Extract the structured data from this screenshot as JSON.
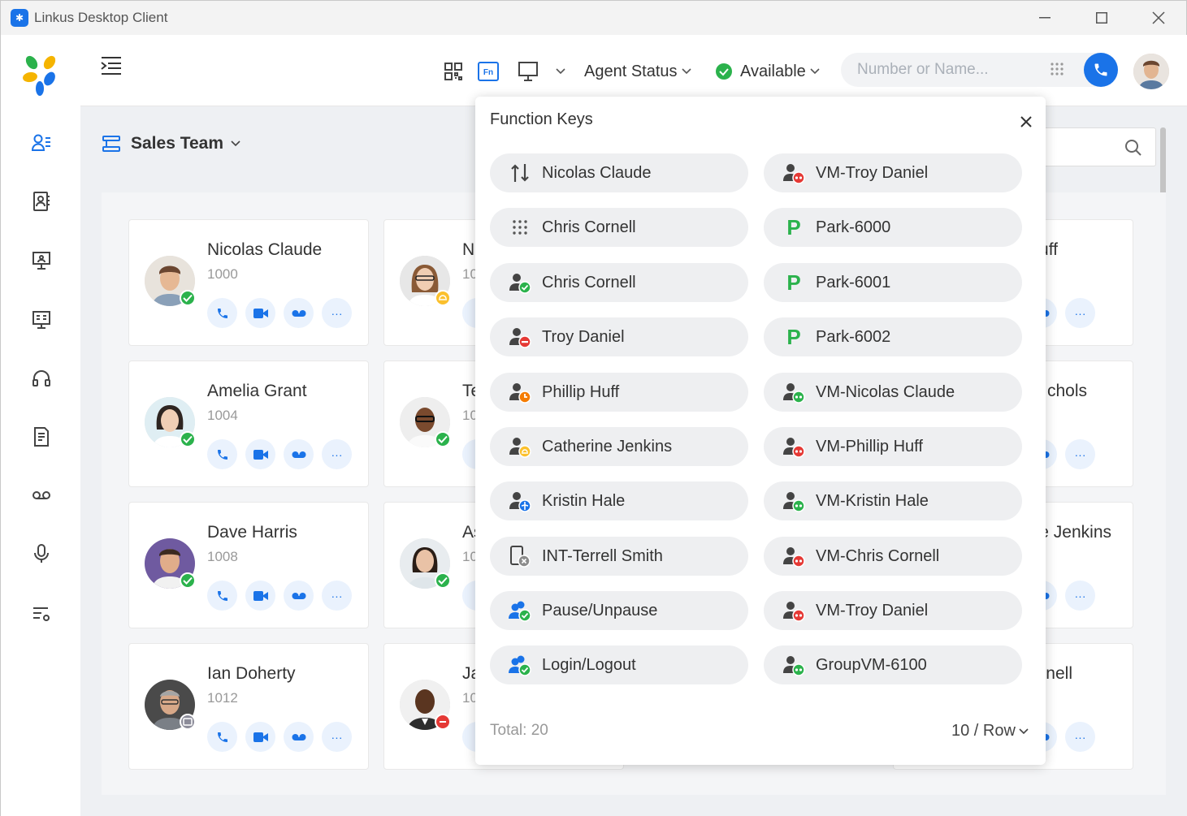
{
  "window": {
    "title": "Linkus Desktop Client"
  },
  "topbar": {
    "agent_status_label": "Agent Status",
    "presence_label": "Available",
    "search_placeholder": "Number or Name..."
  },
  "group": {
    "name": "Sales Team"
  },
  "contacts": [
    {
      "name": "Nicolas Claude",
      "ext": "1000",
      "status": "available"
    },
    {
      "name": "Amelia Grant",
      "ext": "1004",
      "status": "available"
    },
    {
      "name": "Dave Harris",
      "ext": "1008",
      "status": "available"
    },
    {
      "name": "Ian Doherty",
      "ext": "1012",
      "status": "meeting"
    }
  ],
  "partial_cards": {
    "col2": [
      {
        "name": "N",
        "ext": "10"
      },
      {
        "name": "Te",
        "ext": "10"
      },
      {
        "name": "As",
        "ext": "10"
      },
      {
        "name": "Ja",
        "ext": "10"
      }
    ],
    "col4": [
      {
        "name": "uff"
      },
      {
        "name": "chols"
      },
      {
        "name": "e Jenkins"
      },
      {
        "name": "nell"
      }
    ]
  },
  "function_keys": {
    "title": "Function Keys",
    "left": [
      {
        "label": "Nicolas Claude",
        "icon": "transfer-icon"
      },
      {
        "label": "Chris Cornell",
        "icon": "dialpad-icon"
      },
      {
        "label": "Chris Cornell",
        "icon": "blf-available-icon"
      },
      {
        "label": "Troy Daniel",
        "icon": "blf-busy-icon"
      },
      {
        "label": "Phillip Huff",
        "icon": "blf-away-icon"
      },
      {
        "label": "Catherine Jenkins",
        "icon": "blf-lunch-icon"
      },
      {
        "label": "Kristin Hale",
        "icon": "blf-trip-icon"
      },
      {
        "label": "INT-Terrell Smith",
        "icon": "intercom-icon"
      },
      {
        "label": "Pause/Unpause",
        "icon": "queue-pause-icon"
      },
      {
        "label": "Login/Logout",
        "icon": "queue-login-icon"
      }
    ],
    "right": [
      {
        "label": "VM-Troy Daniel",
        "icon": "voicemail-red-icon"
      },
      {
        "label": "Park-6000",
        "icon": "park-icon"
      },
      {
        "label": "Park-6001",
        "icon": "park-icon"
      },
      {
        "label": "Park-6002",
        "icon": "park-icon"
      },
      {
        "label": "VM-Nicolas Claude",
        "icon": "voicemail-green-icon"
      },
      {
        "label": "VM-Phillip Huff",
        "icon": "voicemail-red-icon"
      },
      {
        "label": "VM-Kristin Hale",
        "icon": "voicemail-green-icon"
      },
      {
        "label": "VM-Chris Cornell",
        "icon": "voicemail-red-icon"
      },
      {
        "label": "VM-Troy Daniel",
        "icon": "voicemail-red-icon"
      },
      {
        "label": "GroupVM-6100",
        "icon": "voicemail-green-icon"
      }
    ],
    "total_label": "Total: 20",
    "per_row_label": "10 / Row"
  },
  "colors": {
    "accent": "#1a73e8",
    "available": "#2bb24c",
    "busy": "#e53935",
    "away": "#f57c00",
    "lunch": "#fbc02d",
    "park": "#2bb24c"
  }
}
